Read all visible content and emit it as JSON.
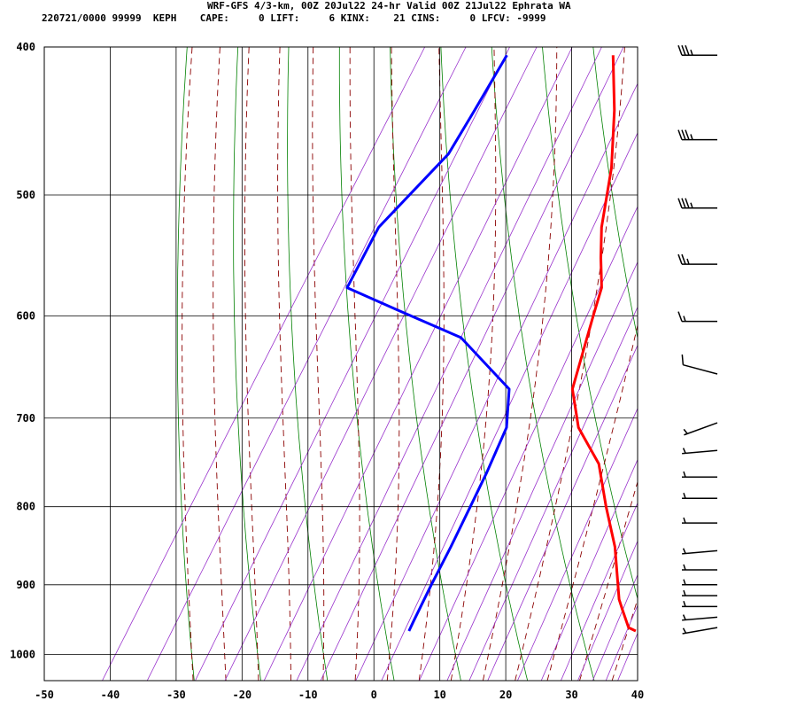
{
  "header": {
    "title": "WRF-GFS 4/3-km, 00Z 20Jul22 24-hr Valid 00Z 21Jul22 Ephrata WA",
    "stats": "220721/0000 99999  KEPH    CAPE:     0 LIFT:     6 KINX:    21 CINS:     0 LFCV: -9999"
  },
  "chart_data": {
    "type": "line",
    "diagram": "skew-T log-P",
    "x_ticks": [
      -50,
      -40,
      -30,
      -20,
      -10,
      0,
      10,
      20,
      30,
      40
    ],
    "y_ticks": [
      400,
      500,
      600,
      700,
      800,
      900,
      1000
    ],
    "xlim": [
      -50,
      40
    ],
    "ylim_pressure": [
      1040,
      400
    ],
    "y_log_scale": true,
    "grid": true,
    "series": [
      {
        "color": "#ff0000",
        "points": [
          {
            "p": 965,
            "t": 35.2
          },
          {
            "p": 960,
            "t": 33.8
          },
          {
            "p": 935,
            "t": 31.3
          },
          {
            "p": 920,
            "t": 29.8
          },
          {
            "p": 900,
            "t": 28.3
          },
          {
            "p": 850,
            "t": 24.4
          },
          {
            "p": 800,
            "t": 19.4
          },
          {
            "p": 750,
            "t": 14.4
          },
          {
            "p": 710,
            "t": 8.0
          },
          {
            "p": 670,
            "t": 3.6
          },
          {
            "p": 600,
            "t": 0.1
          },
          {
            "p": 575,
            "t": -1.2
          },
          {
            "p": 550,
            "t": -4.0
          },
          {
            "p": 525,
            "t": -6.7
          },
          {
            "p": 480,
            "t": -10.6
          },
          {
            "p": 440,
            "t": -15.4
          },
          {
            "p": 405,
            "t": -20.6
          }
        ]
      },
      {
        "color": "#0000ff",
        "points": [
          {
            "p": 965,
            "t": 0.8
          },
          {
            "p": 950,
            "t": 0.6
          },
          {
            "p": 900,
            "t": 0.0
          },
          {
            "p": 850,
            "t": -0.5
          },
          {
            "p": 800,
            "t": -1.2
          },
          {
            "p": 760,
            "t": -1.8
          },
          {
            "p": 710,
            "t": -2.9
          },
          {
            "p": 670,
            "t": -6.0
          },
          {
            "p": 620,
            "t": -18.0
          },
          {
            "p": 595,
            "t": -30.0
          },
          {
            "p": 575,
            "t": -39.8
          },
          {
            "p": 525,
            "t": -40.5
          },
          {
            "p": 470,
            "t": -36.6
          },
          {
            "p": 440,
            "t": -36.6
          },
          {
            "p": 405,
            "t": -36.7
          }
        ]
      }
    ],
    "wind_barbs": [
      {
        "p": 405,
        "dir": 270,
        "kt": 35
      },
      {
        "p": 460,
        "dir": 270,
        "kt": 35
      },
      {
        "p": 510,
        "dir": 270,
        "kt": 35
      },
      {
        "p": 555,
        "dir": 270,
        "kt": 25
      },
      {
        "p": 605,
        "dir": 270,
        "kt": 15
      },
      {
        "p": 655,
        "dir": 285,
        "kt": 10
      },
      {
        "p": 705,
        "dir": 250,
        "kt": 5
      },
      {
        "p": 735,
        "dir": 265,
        "kt": 5
      },
      {
        "p": 765,
        "dir": 270,
        "kt": 5
      },
      {
        "p": 790,
        "dir": 270,
        "kt": 5
      },
      {
        "p": 820,
        "dir": 270,
        "kt": 5
      },
      {
        "p": 855,
        "dir": 265,
        "kt": 5
      },
      {
        "p": 880,
        "dir": 270,
        "kt": 5
      },
      {
        "p": 900,
        "dir": 270,
        "kt": 5
      },
      {
        "p": 915,
        "dir": 270,
        "kt": 5
      },
      {
        "p": 930,
        "dir": 270,
        "kt": 5
      },
      {
        "p": 945,
        "dir": 265,
        "kt": 5
      },
      {
        "p": 960,
        "dir": 260,
        "kt": 5
      }
    ],
    "colors": {
      "gridlines": "#000000",
      "dry_adiabats": "#008000",
      "moist_adiabats": "#8b0000",
      "mixing_ratio": "#9932cc",
      "temperature": "#ff0000",
      "dewpoint": "#0000ff",
      "barbs": "#000000"
    }
  }
}
